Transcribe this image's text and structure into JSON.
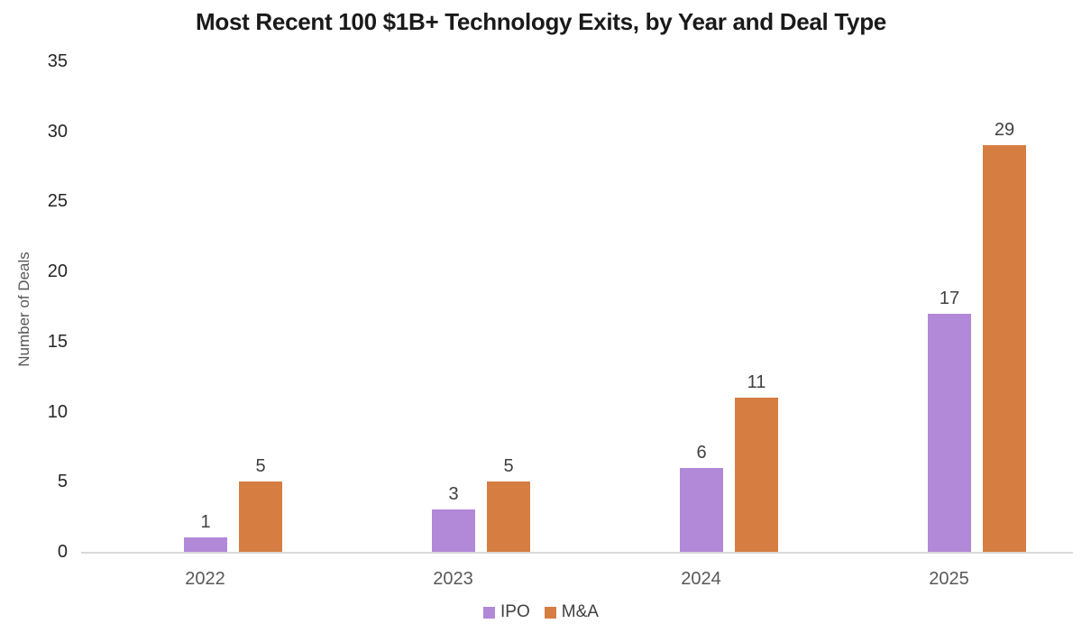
{
  "chart_data": {
    "type": "bar",
    "title": "Most Recent 100 $1B+ Technology Exits, by Year and Deal Type",
    "xlabel": "",
    "ylabel": "Number of Deals",
    "categories": [
      "2022",
      "2023",
      "2024",
      "2025"
    ],
    "series": [
      {
        "name": "IPO",
        "color": "#B288D8",
        "values": [
          1,
          3,
          6,
          17
        ]
      },
      {
        "name": "M&A",
        "color": "#D67D42",
        "values": [
          5,
          5,
          11,
          29
        ]
      }
    ],
    "ylim": [
      0,
      35
    ],
    "yticks": [
      0,
      5,
      10,
      15,
      20,
      25,
      30,
      35
    ],
    "grid": false,
    "data_labels": true,
    "legend_position": "bottom",
    "axis_line_color": "#d9d9d9"
  }
}
